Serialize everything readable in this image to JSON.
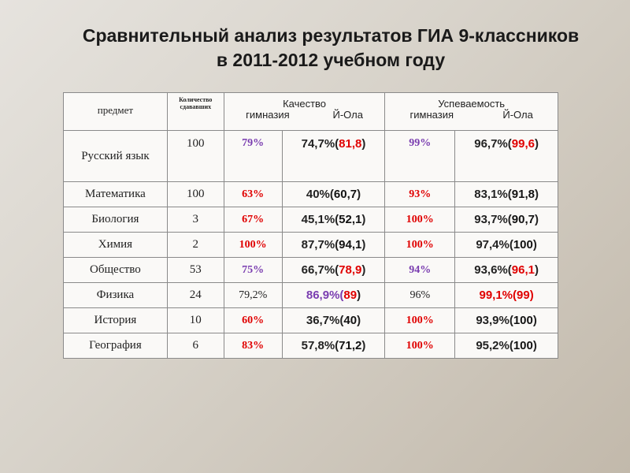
{
  "title": {
    "line1": "Сравнительный анализ результатов ГИА  9-классников",
    "line2": "в 2011-2012 учебном году"
  },
  "table": {
    "header": {
      "subject": "предмет",
      "count": "Количество сдававших",
      "quality": "Качество",
      "performance": "Успеваемость",
      "school": "гимназия",
      "district": "Й-Ола"
    },
    "rows": [
      {
        "subject": "Русский язык",
        "count": "100",
        "q_school": "79%",
        "q_school_color": "#7a3db0",
        "q_district": "74,7%(",
        "q_district_paren": "81,8",
        "q_district_close": ")",
        "q_paren_color": "#e00000",
        "u_school": "99%",
        "u_school_color": "#7a3db0",
        "u_district": "96,7%(",
        "u_district_paren": "99,6",
        "u_district_close": ")",
        "u_paren_color": "#e00000"
      },
      {
        "subject": "Математика",
        "count": "100",
        "q_school": "63%",
        "q_school_color": "#e00000",
        "q_district": "40%(",
        "q_district_paren": "60,7",
        "q_district_close": ")",
        "q_paren_color": "#111111",
        "u_school": "93%",
        "u_school_color": "#e00000",
        "u_district": "83,1%(",
        "u_district_paren": "91,8",
        "u_district_close": ")",
        "u_paren_color": "#111111"
      },
      {
        "subject": "Биология",
        "count": "3",
        "q_school": "67%",
        "q_school_color": "#e00000",
        "q_district": "45,1%(",
        "q_district_paren": "52,1",
        "q_district_close": ")",
        "q_paren_color": "#111111",
        "u_school": "100%",
        "u_school_color": "#e00000",
        "u_district": "93,7%(",
        "u_district_paren": "90,7",
        "u_district_close": ")",
        "u_paren_color": "#111111"
      },
      {
        "subject": "Химия",
        "count": "2",
        "q_school": "100%",
        "q_school_color": "#e00000",
        "q_district": "87,7%(",
        "q_district_paren": "94,1",
        "q_district_close": ")",
        "q_paren_color": "#111111",
        "u_school": "100%",
        "u_school_color": "#e00000",
        "u_district": "97,4%(",
        "u_district_paren": "100",
        "u_district_close": ")",
        "u_paren_color": "#111111"
      },
      {
        "subject": "Общество",
        "count": "53",
        "q_school": "75%",
        "q_school_color": "#7a3db0",
        "q_district": "66,7%(",
        "q_district_paren": "78,9",
        "q_district_close": ")",
        "q_paren_color": "#e00000",
        "u_school": "94%",
        "u_school_color": "#7a3db0",
        "u_district": "93,6%(",
        "u_district_paren": "96,1",
        "u_district_close": ")",
        "u_paren_color": "#e00000"
      },
      {
        "subject": "Физика",
        "count": "24",
        "q_school": "79,2%",
        "q_school_color": "#222222",
        "q_district": "86,9%(",
        "q_district_paren": "89",
        "q_district_close": ")",
        "q_paren_color": "#e00000",
        "u_school": "96%",
        "u_school_color": "#222222",
        "u_district": "99,1%(",
        "u_district_paren": "99",
        "u_district_close": ")",
        "u_paren_color": "#e00000"
      },
      {
        "subject": "История",
        "count": "10",
        "q_school": "60%",
        "q_school_color": "#e00000",
        "q_district": "36,7%(",
        "q_district_paren": "40",
        "q_district_close": ")",
        "q_paren_color": "#111111",
        "u_school": "100%",
        "u_school_color": "#e00000",
        "u_district": "93,9%(",
        "u_district_paren": "100",
        "u_district_close": ")",
        "u_paren_color": "#111111"
      },
      {
        "subject": "География",
        "count": "6",
        "q_school": "83%",
        "q_school_color": "#e00000",
        "q_district": "57,8%(",
        "q_district_paren": "71,2",
        "q_district_close": ")",
        "q_paren_color": "#111111",
        "u_school": "100%",
        "u_school_color": "#e00000",
        "u_district": "95,2%(",
        "u_district_paren": "100",
        "u_district_close": ")",
        "u_paren_color": "#111111"
      }
    ]
  }
}
